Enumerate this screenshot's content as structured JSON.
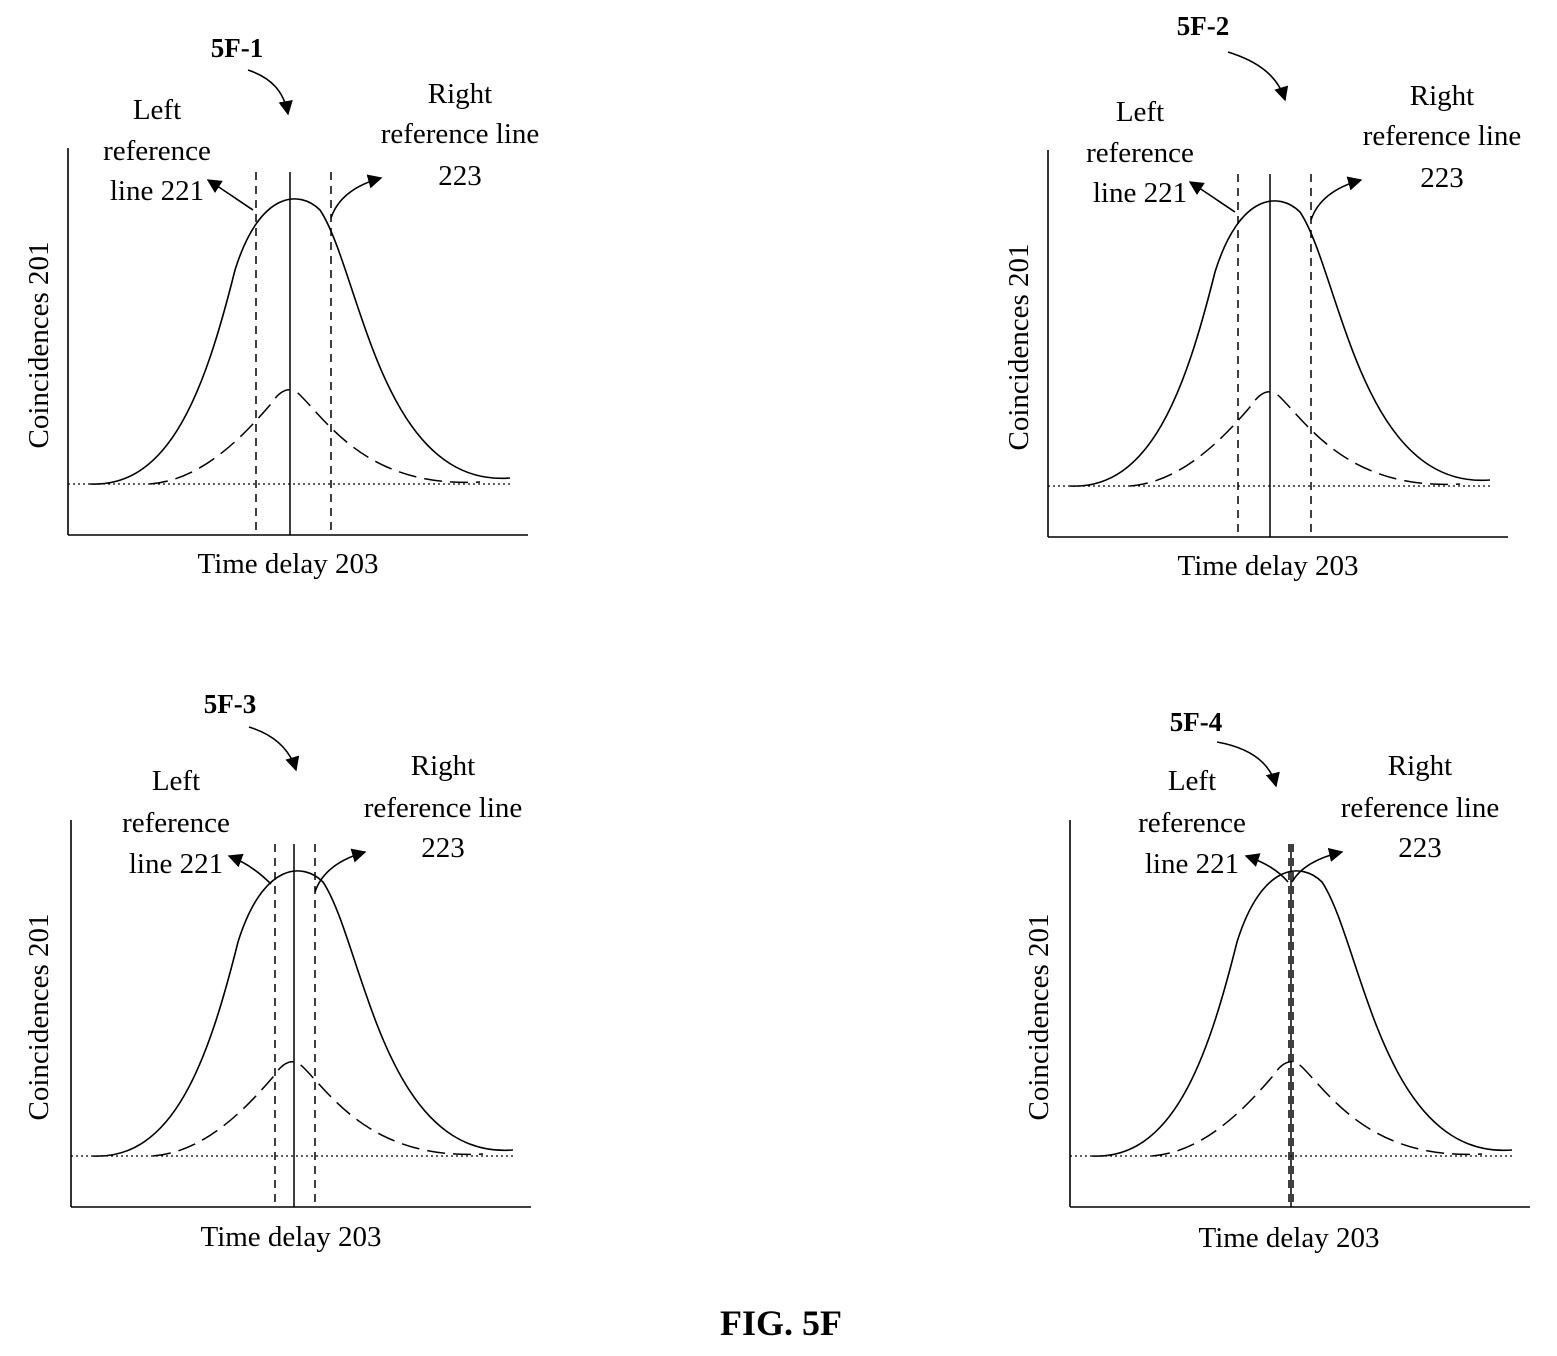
{
  "figure": {
    "caption": "FIG. 5F",
    "stroke_color": "#000000",
    "background": "#ffffff"
  },
  "panels": [
    {
      "id": "5F-1",
      "y_axis_label": "Coincidences 201",
      "x_axis_label": "Time delay 203",
      "left_ref_label": [
        "Left",
        "reference",
        "line 221"
      ],
      "right_ref_label": [
        "Right",
        "reference line",
        "223"
      ]
    },
    {
      "id": "5F-2",
      "y_axis_label": "Coincidences 201",
      "x_axis_label": "Time delay 203",
      "left_ref_label": [
        "Left",
        "reference",
        "line 221"
      ],
      "right_ref_label": [
        "Right",
        "reference line",
        "223"
      ]
    },
    {
      "id": "5F-3",
      "y_axis_label": "Coincidences 201",
      "x_axis_label": "Time delay 203",
      "left_ref_label": [
        "Left",
        "reference",
        "line 221"
      ],
      "right_ref_label": [
        "Right",
        "reference line",
        "223"
      ]
    },
    {
      "id": "5F-4",
      "y_axis_label": "Coincidences 201",
      "x_axis_label": "Time delay 203",
      "left_ref_label": [
        "Left",
        "reference",
        "line 221"
      ],
      "right_ref_label": [
        "Right",
        "reference line",
        "223"
      ]
    }
  ]
}
